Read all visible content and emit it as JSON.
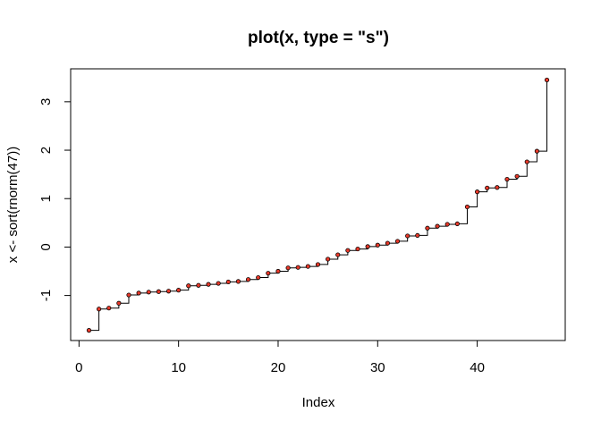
{
  "chart_data": {
    "type": "line",
    "plot_style": "step",
    "title": "plot(x, type = \"s\")",
    "xlabel": "Index",
    "ylabel": "x <- sort(rnorm(47))",
    "xlim": [
      -0.84,
      48.84
    ],
    "ylim": [
      -1.93,
      3.68
    ],
    "x_ticks": [
      0,
      10,
      20,
      30,
      40
    ],
    "y_ticks": [
      -1,
      0,
      1,
      2,
      3
    ],
    "x_tick_labels": [
      "0",
      "10",
      "20",
      "30",
      "40"
    ],
    "y_tick_labels": [
      "-1",
      "0",
      "1",
      "2",
      "3"
    ],
    "grid": false,
    "legend": "none",
    "point_fill_color": "#e8392a",
    "line_color": "#000000",
    "x": [
      1,
      2,
      3,
      4,
      5,
      6,
      7,
      8,
      9,
      10,
      11,
      12,
      13,
      14,
      15,
      16,
      17,
      18,
      19,
      20,
      21,
      22,
      23,
      24,
      25,
      26,
      27,
      28,
      29,
      30,
      31,
      32,
      33,
      34,
      35,
      36,
      37,
      38,
      39,
      40,
      41,
      42,
      43,
      44,
      45,
      46,
      47
    ],
    "y": [
      -1.72,
      -1.28,
      -1.26,
      -1.16,
      -0.99,
      -0.95,
      -0.93,
      -0.92,
      -0.91,
      -0.89,
      -0.8,
      -0.79,
      -0.77,
      -0.75,
      -0.72,
      -0.71,
      -0.67,
      -0.63,
      -0.54,
      -0.5,
      -0.43,
      -0.42,
      -0.4,
      -0.36,
      -0.25,
      -0.16,
      -0.07,
      -0.04,
      0.01,
      0.04,
      0.08,
      0.12,
      0.23,
      0.24,
      0.39,
      0.43,
      0.47,
      0.48,
      0.83,
      1.14,
      1.22,
      1.23,
      1.4,
      1.46,
      1.76,
      1.98,
      3.45
    ]
  }
}
